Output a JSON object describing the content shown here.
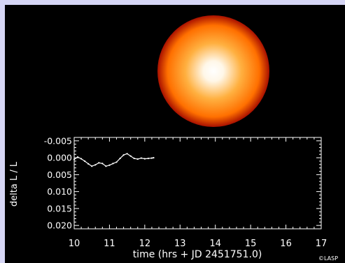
{
  "chart_data": {
    "type": "line",
    "title": "",
    "xlabel": "time (hrs + JD 2451751.0)",
    "ylabel": "delta L / L",
    "xlim": [
      10,
      17
    ],
    "ylim": [
      0.021,
      -0.006
    ],
    "y_inverted": true,
    "xticks": [
      10,
      11,
      12,
      13,
      14,
      15,
      16,
      17
    ],
    "yticks": [
      -0.005,
      0.0,
      0.005,
      0.01,
      0.015,
      0.02
    ],
    "ytick_labels": [
      "-0.005",
      "0.000",
      "0.005",
      "0.010",
      "0.015",
      "0.020"
    ],
    "series": [
      {
        "x": [
          10.0,
          10.1,
          10.2,
          10.3,
          10.4,
          10.5,
          10.6,
          10.7,
          10.8,
          10.9,
          11.0,
          11.1,
          11.2,
          11.3,
          11.4,
          11.5,
          11.6,
          11.7,
          11.8,
          11.9,
          12.0,
          12.1,
          12.2,
          12.25
        ],
        "y": [
          0.0005,
          -0.0002,
          0.0003,
          0.001,
          0.0018,
          0.0025,
          0.0021,
          0.0015,
          0.0017,
          0.0025,
          0.0022,
          0.0017,
          0.0013,
          0.0002,
          -0.0008,
          -0.0012,
          -0.0005,
          0.0002,
          0.0004,
          0.0001,
          0.0003,
          0.0002,
          0.0001,
          0.0
        ]
      }
    ]
  },
  "star": {
    "colors": {
      "core": "#ffffff",
      "mid": "#ffb040",
      "limb": "#ff7000",
      "edge": "#a81000"
    }
  },
  "logo_text": "©LASP",
  "colors": {
    "background": "#000000",
    "border": "#d6d6f5",
    "foreground": "#ffffff"
  }
}
